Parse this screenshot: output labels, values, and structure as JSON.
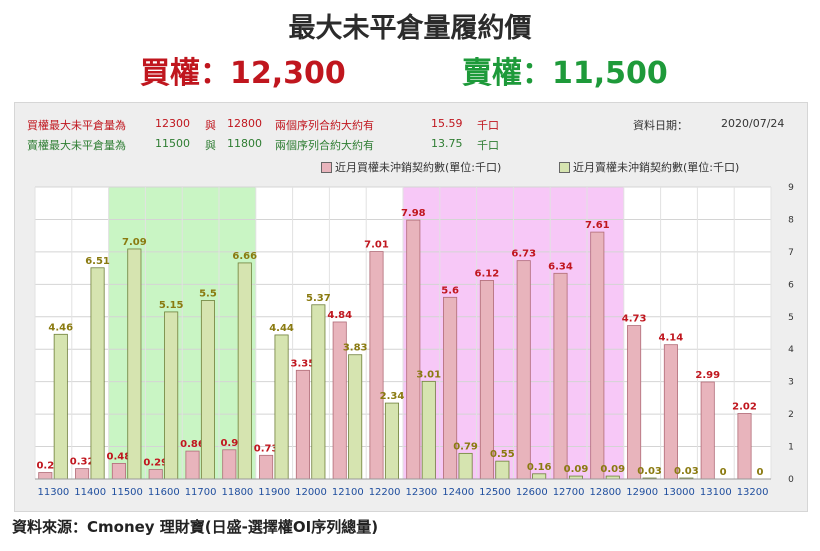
{
  "header": {
    "title": "最大未平倉量履約價",
    "call_label": "買權：12,300",
    "put_label": "賣權：11,500"
  },
  "info": {
    "call_row": {
      "label": "買權最大未平倉量為",
      "strike_a": "12300",
      "and": "與",
      "strike_b": "12800",
      "text": "兩個序列合約大約有",
      "value": "15.59",
      "unit": "千口"
    },
    "put_row": {
      "label": "賣權最大未平倉量為",
      "strike_a": "11500",
      "and": "與",
      "strike_b": "11800",
      "text": "兩個序列合約大約有",
      "value": "13.75",
      "unit": "千口"
    },
    "date_label": "資料日期：",
    "date_value": "2020/07/24"
  },
  "legend": {
    "call": "近月買權未沖銷契約數(單位:千口)",
    "put": "近月賣權未沖銷契約數(單位:千口)"
  },
  "footer": "資料來源：Cmoney 理財寶(日盛-選擇權OI序列總量)",
  "colors": {
    "call_bar": "#e8b4bc",
    "call_stroke": "#b06b77",
    "call_label": "#c0161e",
    "put_bar": "#d6e4b0",
    "put_stroke": "#6f7f3a",
    "put_label": "#8a7a10",
    "put_highlight": "#c9f5c4",
    "call_highlight": "#f7c8f7",
    "axis_text": "#1f4e9e"
  },
  "chart_data": {
    "type": "bar",
    "categories": [
      "11300",
      "11400",
      "11500",
      "11600",
      "11700",
      "11800",
      "11900",
      "12000",
      "12100",
      "12200",
      "12300",
      "12400",
      "12500",
      "12600",
      "12700",
      "12800",
      "12900",
      "13000",
      "13100",
      "13200"
    ],
    "series": [
      {
        "name": "近月買權未沖銷契約數(單位:千口)",
        "values": [
          0.2,
          0.32,
          0.48,
          0.29,
          0.86,
          0.9,
          0.73,
          3.35,
          4.84,
          7.01,
          7.98,
          5.6,
          6.12,
          6.73,
          6.34,
          7.61,
          4.73,
          4.14,
          2.99,
          2.02
        ]
      },
      {
        "name": "近月賣權未沖銷契約數(單位:千口)",
        "values": [
          4.46,
          6.51,
          7.09,
          5.15,
          5.5,
          6.66,
          4.44,
          5.37,
          3.83,
          2.34,
          3.01,
          0.79,
          0.55,
          0.16,
          0.09,
          0.09,
          0.03,
          0.03,
          0,
          0
        ]
      }
    ],
    "ylim": [
      0,
      9
    ],
    "yticks": [
      "0",
      "1",
      "2",
      "3",
      "4",
      "5",
      "6",
      "7",
      "8",
      "9"
    ],
    "put_highlight_range": [
      "11500",
      "11800"
    ],
    "call_highlight_range": [
      "12300",
      "12800"
    ],
    "grid": true,
    "legend_position": "top-right"
  }
}
